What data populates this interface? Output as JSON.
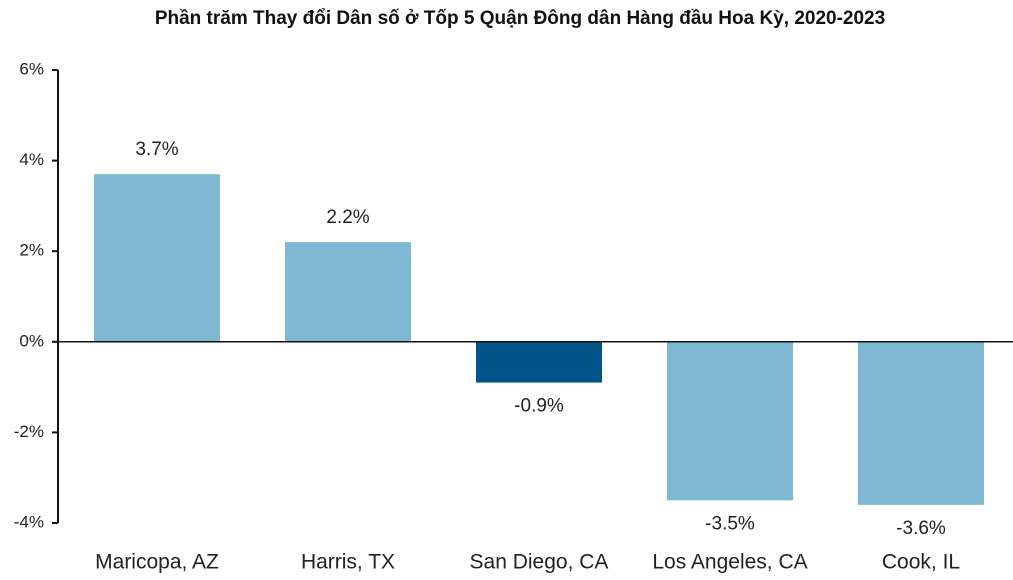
{
  "chart_data": {
    "type": "bar",
    "title": "Phần trăm Thay đổi Dân số ở Tốp 5 Quận Đông dân Hàng đầu Hoa Kỳ, 2020-2023",
    "categories": [
      "Maricopa, AZ",
      "Harris, TX",
      "San Diego, CA",
      "Los Angeles, CA",
      "Cook, IL"
    ],
    "values": [
      3.7,
      2.2,
      -0.9,
      -3.5,
      -3.6
    ],
    "value_labels": [
      "3.7%",
      "2.2%",
      "-0.9%",
      "-3.5%",
      "-3.6%"
    ],
    "colors": [
      "#7fb8d3",
      "#7fb8d3",
      "#00548a",
      "#7fb8d3",
      "#7fb8d3"
    ],
    "ylim": [
      -4,
      6
    ],
    "yticks": [
      {
        "value": -4,
        "label": "-4%"
      },
      {
        "value": -2,
        "label": "-2%"
      },
      {
        "value": 0,
        "label": "0%"
      },
      {
        "value": 2,
        "label": "2%"
      },
      {
        "value": 4,
        "label": "4%"
      },
      {
        "value": 6,
        "label": "6%"
      }
    ],
    "grid": false
  }
}
